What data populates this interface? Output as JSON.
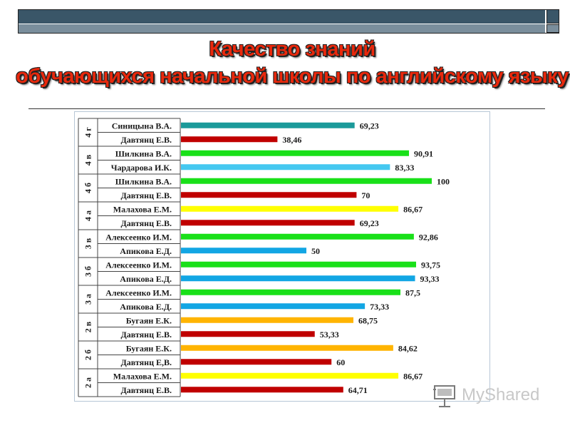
{
  "title": {
    "line1": "Качество знаний",
    "line2": "обучающихся начальной школы по английскому языку"
  },
  "colors": {
    "teal": "#1b9a9a",
    "red": "#c00000",
    "green": "#19e019",
    "cyan": "#45c8f0",
    "yellow": "#ffff00",
    "blue": "#12a6e4",
    "orange": "#ffb400",
    "accent_title": "#e8280c"
  },
  "logo": {
    "text": "MyShared",
    "icon": "presentation-board-icon"
  },
  "chart_data": {
    "type": "bar",
    "orientation": "horizontal",
    "xlim": [
      0,
      100
    ],
    "groups": [
      "4 г",
      "4 в",
      "4 б",
      "4 а",
      "3 в",
      "3 б",
      "3 а",
      "2 в",
      "2 б",
      "2 а"
    ],
    "rows": [
      {
        "group": "4 г",
        "teacher": "Синицына В.А.",
        "value": 69.23,
        "label": "69,23",
        "color": "teal"
      },
      {
        "group": "4 г",
        "teacher": "Давтянц Е.В.",
        "value": 38.46,
        "label": "38,46",
        "color": "red"
      },
      {
        "group": "4 в",
        "teacher": "Шилкина В.А.",
        "value": 90.91,
        "label": "90,91",
        "color": "green"
      },
      {
        "group": "4 в",
        "teacher": "Чардарова И.К.",
        "value": 83.33,
        "label": "83,33",
        "color": "cyan"
      },
      {
        "group": "4 б",
        "teacher": "Шилкина В.А.",
        "value": 100,
        "label": "100",
        "color": "green"
      },
      {
        "group": "4 б",
        "teacher": "Давтянц Е.В.",
        "value": 70,
        "label": "70",
        "color": "red"
      },
      {
        "group": "4 а",
        "teacher": "Малахова Е.М.",
        "value": 86.67,
        "label": "86,67",
        "color": "yellow"
      },
      {
        "group": "4 а",
        "teacher": "Давтянц Е.В.",
        "value": 69.23,
        "label": "69,23",
        "color": "red"
      },
      {
        "group": "3 в",
        "teacher": "Алексеенко И.М.",
        "value": 92.86,
        "label": "92,86",
        "color": "green"
      },
      {
        "group": "3 в",
        "teacher": "Апикова Е.Д.",
        "value": 50,
        "label": "50",
        "color": "blue"
      },
      {
        "group": "3 б",
        "teacher": "Алексеенко И.М.",
        "value": 93.75,
        "label": "93,75",
        "color": "green"
      },
      {
        "group": "3 б",
        "teacher": "Апикова Е.Д.",
        "value": 93.33,
        "label": "93,33",
        "color": "blue"
      },
      {
        "group": "3 а",
        "teacher": "Алексеенко И.М.",
        "value": 87.5,
        "label": "87,5",
        "color": "green"
      },
      {
        "group": "3 а",
        "teacher": "Апикова Е.Д.",
        "value": 73.33,
        "label": "73,33",
        "color": "blue"
      },
      {
        "group": "2 в",
        "teacher": "Бугаян Е.К.",
        "value": 68.75,
        "label": "68,75",
        "color": "orange"
      },
      {
        "group": "2 в",
        "teacher": "Давтянц Е.В.",
        "value": 53.33,
        "label": "53,33",
        "color": "red"
      },
      {
        "group": "2 б",
        "teacher": "Бугаян Е.К.",
        "value": 84.62,
        "label": "84,62",
        "color": "orange"
      },
      {
        "group": "2 б",
        "teacher": "Давтянц Е,В.",
        "value": 60,
        "label": "60",
        "color": "red"
      },
      {
        "group": "2 а",
        "teacher": "Малахова Е.М.",
        "value": 86.67,
        "label": "86,67",
        "color": "yellow"
      },
      {
        "group": "2 а",
        "teacher": "Давтянц Е.В.",
        "value": 64.71,
        "label": "64,71",
        "color": "red"
      }
    ]
  }
}
